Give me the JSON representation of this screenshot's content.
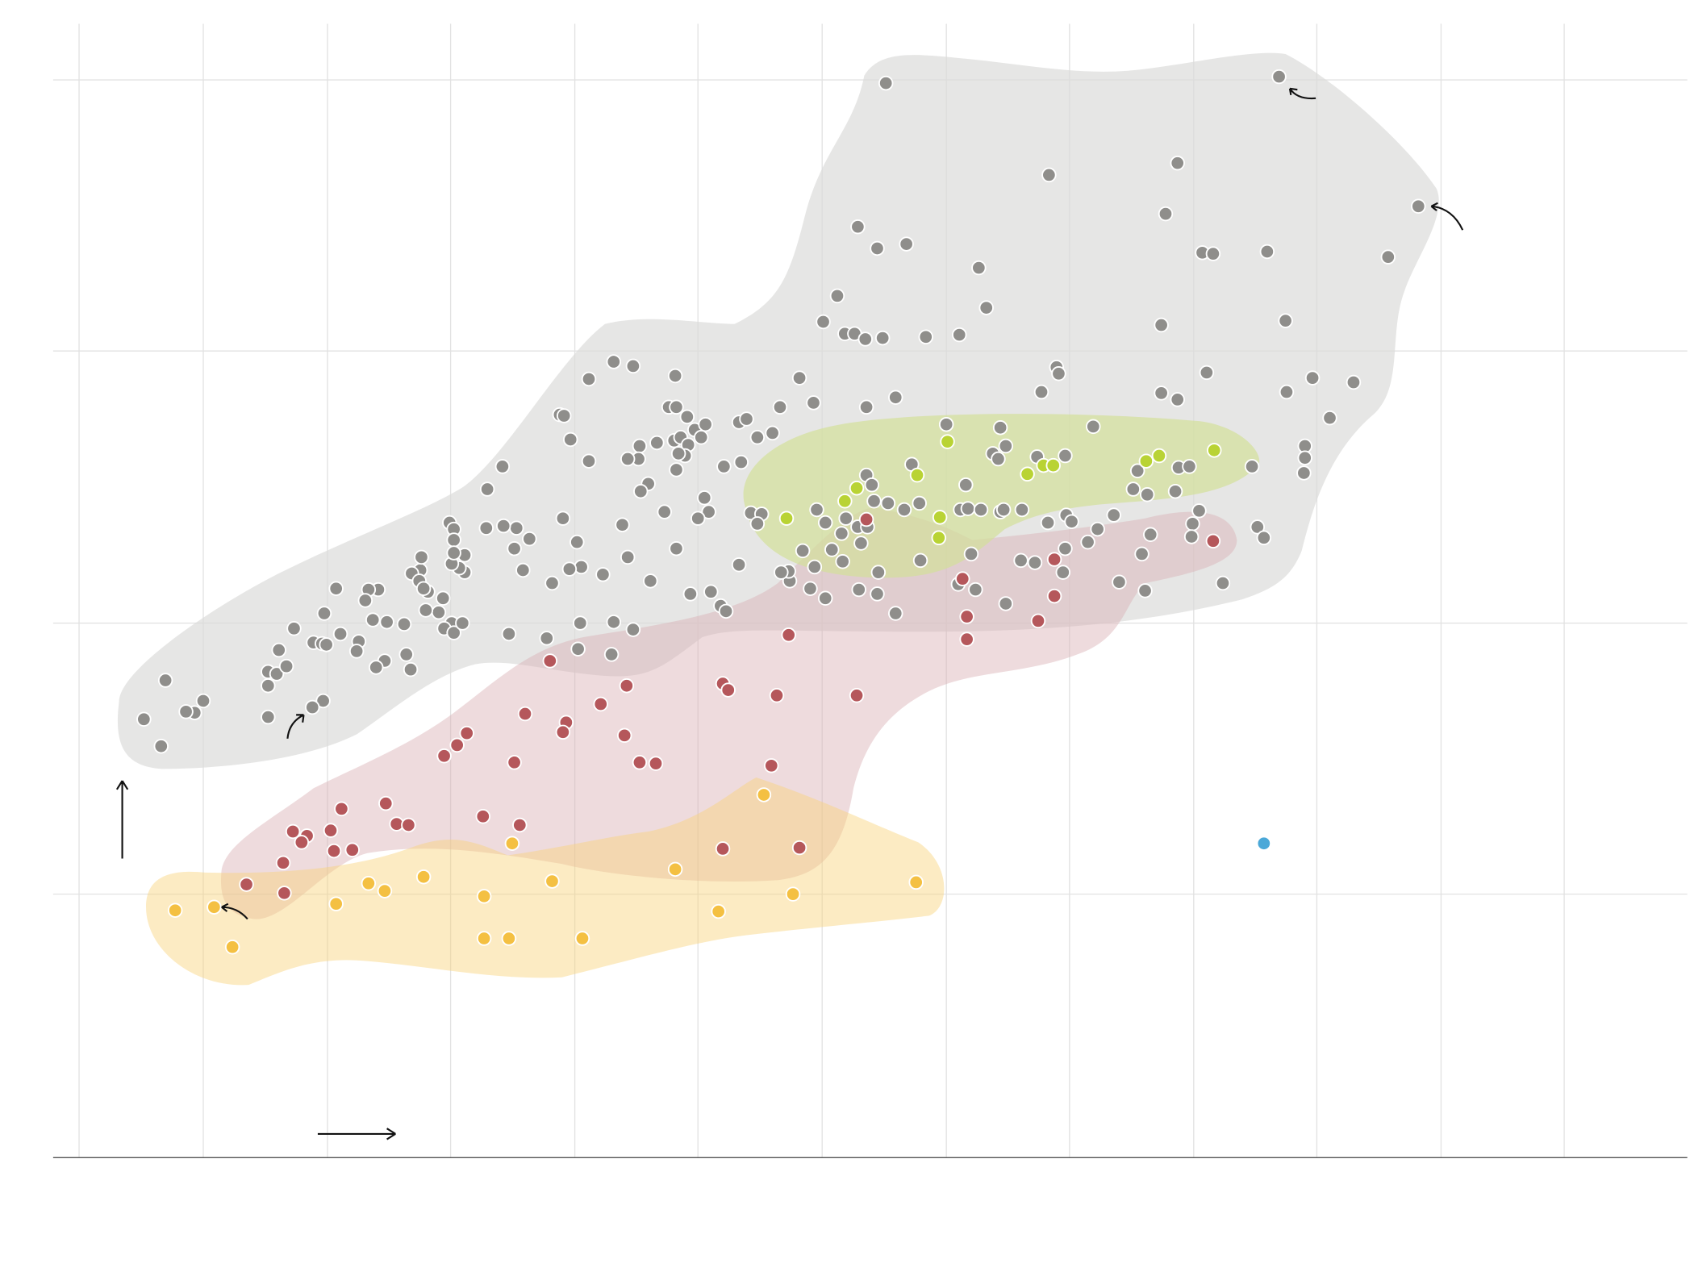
{
  "chart_data": {
    "type": "scatter",
    "xlim": [
      49,
      1562
    ],
    "ylim": [
      0,
      1050
    ],
    "xticks": [
      73,
      188,
      303,
      417,
      532,
      646,
      761,
      876,
      990,
      1105,
      1219,
      1334,
      1448
    ],
    "yticks": [
      244,
      495,
      747,
      998
    ],
    "grid": true,
    "series": [
      {
        "color": "#8f8e8b",
        "x": [
          820,
          1184,
          971,
          1090,
          1313,
          1079,
          794,
          812,
          839,
          906,
          1113,
          1123,
          1173,
          1285,
          775,
          913,
          762,
          782,
          791,
          801,
          817,
          857,
          888,
          1075,
          1190,
          545,
          568,
          586,
          625,
          740,
          753,
          802,
          829,
          978,
          980,
          964,
          1075,
          1090,
          1117,
          1191,
          1215,
          1253,
          1231,
          518,
          522,
          619,
          626,
          636,
          643,
          653,
          649,
          624,
          630,
          637,
          634,
          628,
          626,
          608,
          592,
          591,
          581,
          600,
          593,
          528,
          545,
          465,
          451,
          670,
          686,
          684,
          691,
          701,
          715,
          722,
          876,
          926,
          1012,
          919,
          924,
          931,
          960,
          986,
          1053,
          1091,
          1101,
          1208,
          1208,
          1207,
          1159,
          894,
          1049,
          1062,
          1088,
          1110,
          802,
          807,
          844,
          822,
          809,
          837,
          851,
          889,
          896,
          908,
          926,
          929,
          946,
          970,
          987,
          992,
          1031,
          1016,
          1007,
          1065,
          1104,
          1103,
          1057,
          1036,
          1060,
          1132,
          1164,
          1170,
          764,
          756,
          783,
          794,
          803,
          779,
          797,
          770,
          780,
          743,
          754,
          813,
          852,
          899,
          945,
          958,
          986,
          984,
          887,
          903,
          931,
          829,
          812,
          795,
          764,
          750,
          731,
          730,
          723,
          695,
          705,
          701,
          652,
          656,
          646,
          684,
          658,
          639,
          667,
          672,
          586,
          568,
          537,
          566,
          535,
          506,
          471,
          602,
          581,
          615,
          626,
          576,
          558,
          538,
          527,
          534,
          521,
          511,
          484,
          490,
          476,
          478,
          466,
          450,
          430,
          430,
          425,
          418,
          416,
          420,
          420,
          420,
          410,
          418,
          411,
          420,
          428,
          406,
          394,
          396,
          389,
          390,
          381,
          388,
          392,
          374,
          358,
          345,
          350,
          341,
          338,
          311,
          300,
          272,
          315,
          290,
          298,
          302,
          332,
          330,
          376,
          356,
          348,
          380,
          258,
          248,
          256,
          265,
          248,
          299,
          289,
          248,
          188,
          180,
          172,
          153,
          133,
          149
        ],
        "values": [
          995,
          1001,
          910,
          921,
          881,
          874,
          862,
          842,
          846,
          824,
          838,
          837,
          839,
          834,
          798,
          787,
          774,
          763,
          763,
          758,
          759,
          760,
          762,
          771,
          775,
          721,
          737,
          733,
          724,
          722,
          699,
          695,
          704,
          732,
          726,
          709,
          708,
          702,
          727,
          709,
          722,
          718,
          685,
          688,
          687,
          695,
          695,
          686,
          674,
          679,
          667,
          664,
          667,
          660,
          650,
          652,
          637,
          662,
          659,
          647,
          647,
          624,
          617,
          665,
          645,
          640,
          619,
          640,
          644,
          681,
          684,
          667,
          671,
          695,
          679,
          676,
          677,
          652,
          647,
          659,
          649,
          650,
          636,
          639,
          640,
          659,
          648,
          634,
          640,
          623,
          619,
          614,
          617,
          599,
          632,
          623,
          642,
          606,
          608,
          600,
          606,
          600,
          601,
          600,
          598,
          600,
          600,
          588,
          595,
          589,
          595,
          582,
          570,
          577,
          587,
          575,
          559,
          533,
          525,
          532,
          584,
          574,
          588,
          600,
          592,
          584,
          584,
          578,
          569,
          563,
          552,
          562,
          547,
          542,
          553,
          559,
          553,
          551,
          564,
          542,
          531,
          526,
          513,
          504,
          522,
          526,
          518,
          527,
          534,
          543,
          542,
          597,
          596,
          587,
          611,
          598,
          592,
          549,
          524,
          522,
          511,
          506,
          489,
          496,
          495,
          466,
          471,
          481,
          485,
          534,
          556,
          598,
          564,
          586,
          540,
          547,
          545,
          570,
          592,
          532,
          544,
          573,
          564,
          583,
          585,
          583,
          558,
          542,
          546,
          550,
          588,
          582,
          572,
          560,
          518,
          495,
          490,
          486,
          495,
          505,
          507,
          524,
          544,
          556,
          541,
          534,
          527,
          494,
          496,
          498,
          526,
          526,
          516,
          527,
          504,
          490,
          485,
          477,
          476,
          475,
          478,
          469,
          466,
          460,
          454,
          452,
          470,
          450,
          448,
          455,
          437,
          423,
          417,
          408,
          423,
          412,
          413,
          442,
          406,
          381
        ]
      },
      {
        "color": "#b5575b",
        "x": [
          802,
          891,
          895,
          895,
          976,
          976,
          961,
          1123,
          730,
          509,
          580,
          669,
          674,
          719,
          793,
          486,
          556,
          524,
          521,
          578,
          432,
          423,
          411,
          476,
          592,
          607,
          714,
          316,
          357,
          367,
          378,
          271,
          284,
          306,
          279,
          309,
          326,
          447,
          481,
          669,
          740,
          262,
          228,
          263
        ],
        "values": [
          591,
          536,
          501,
          480,
          554,
          520,
          497,
          571,
          484,
          460,
          437,
          439,
          433,
          428,
          428,
          411,
          420,
          403,
          394,
          391,
          393,
          382,
          372,
          366,
          366,
          365,
          363,
          323,
          328,
          309,
          308,
          302,
          298,
          303,
          292,
          284,
          285,
          316,
          308,
          286,
          287,
          273,
          253,
          245
        ]
      },
      {
        "color": "#f4c042",
        "x": [
          707,
          474,
          341,
          356,
          392,
          511,
          625,
          848,
          734,
          448,
          311,
          198,
          162,
          665,
          215,
          448,
          471,
          539
        ],
        "values": [
          336,
          291,
          254,
          247,
          260,
          256,
          267,
          255,
          244,
          242,
          235,
          232,
          229,
          228,
          195,
          203,
          203,
          203
        ]
      },
      {
        "color": "#b9d334",
        "x": [
          877,
          849,
          793,
          782,
          728,
          870,
          869,
          951,
          966,
          975,
          1061,
          1073,
          1124
        ],
        "values": [
          663,
          632,
          620,
          608,
          592,
          593,
          574,
          633,
          641,
          641,
          645,
          650,
          655
        ]
      },
      {
        "color": "#4aa8d8",
        "x": [
          1170
        ],
        "values": [
          291
        ]
      }
    ]
  }
}
